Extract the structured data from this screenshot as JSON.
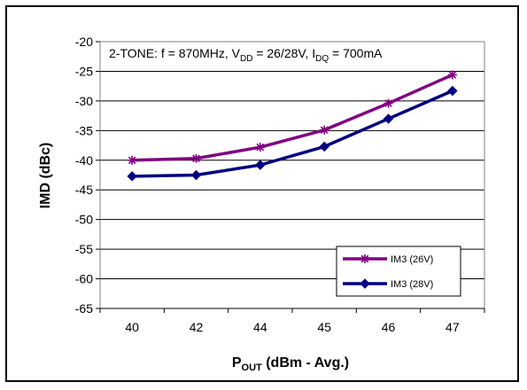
{
  "chart_data": {
    "type": "line",
    "annotation": {
      "prefix": "2-TONE: f = 870MHz, V",
      "sub1": "DD",
      "mid1": " = 26/28V, I",
      "sub2": "DQ",
      "suffix": " = 700mA"
    },
    "xlabel": {
      "main": "P",
      "sub": "OUT",
      "rest": " (dBm - Avg.)"
    },
    "ylabel": "IMD (dBc)",
    "categories": [
      "40",
      "42",
      "44",
      "45",
      "46",
      "47"
    ],
    "ylim": [
      -65,
      -20
    ],
    "yticks": [
      -20,
      -25,
      -30,
      -35,
      -40,
      -45,
      -50,
      -55,
      -60,
      -65
    ],
    "grid": true,
    "legend_position": "bottom-right",
    "series": [
      {
        "name": "IM3 (26V)",
        "values": [
          -40.0,
          -39.7,
          -37.8,
          -34.9,
          -30.4,
          -25.6
        ],
        "color": "#800080",
        "marker": "star"
      },
      {
        "name": "IM3 (28V)",
        "values": [
          -42.7,
          -42.5,
          -40.8,
          -37.7,
          -33.0,
          -28.3
        ],
        "color": "#000080",
        "marker": "diamond"
      }
    ]
  }
}
